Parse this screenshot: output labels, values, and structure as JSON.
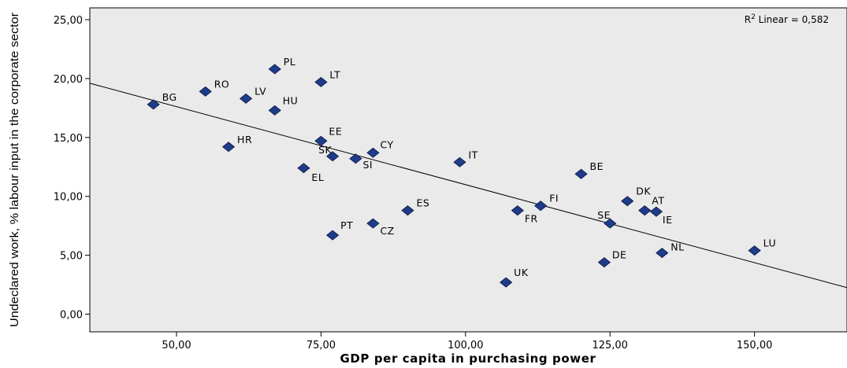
{
  "chart_data": {
    "type": "scatter",
    "xlabel": "GDP per capita in purchasing power",
    "ylabel": "Undeclared work, % labour input in the corporate sector",
    "xlim": [
      35,
      166
    ],
    "ylim": [
      -1.5,
      26
    ],
    "x_ticks": [
      50,
      75,
      100,
      125,
      150
    ],
    "x_tick_labels": [
      "50,00",
      "75,00",
      "100,00",
      "125,00",
      "150,00"
    ],
    "y_ticks": [
      0,
      5,
      10,
      15,
      20,
      25
    ],
    "y_tick_labels": [
      "0,00",
      "5,00",
      "10,00",
      "15,00",
      "20,00",
      "25,00"
    ],
    "grid": false,
    "background": "#eaeaea",
    "marker_color": "#1f3c8a",
    "annotation": {
      "base": "R",
      "sup": "2",
      "text": " Linear = 0,582"
    },
    "fit_line": {
      "x": [
        35,
        166
      ],
      "y": [
        19.6,
        2.25
      ]
    },
    "points": [
      {
        "label": "BG",
        "x": 46,
        "y": 17.8
      },
      {
        "label": "RO",
        "x": 55,
        "y": 18.9
      },
      {
        "label": "PL",
        "x": 67,
        "y": 20.8
      },
      {
        "label": "LV",
        "x": 62,
        "y": 18.3
      },
      {
        "label": "LT",
        "x": 75,
        "y": 19.7
      },
      {
        "label": "HU",
        "x": 67,
        "y": 17.3
      },
      {
        "label": "HR",
        "x": 59,
        "y": 14.2
      },
      {
        "label": "EE",
        "x": 75,
        "y": 14.7
      },
      {
        "label": "SK",
        "x": 77,
        "y": 13.4
      },
      {
        "label": "SI",
        "x": 81,
        "y": 13.2
      },
      {
        "label": "CY",
        "x": 84,
        "y": 13.7
      },
      {
        "label": "EL",
        "x": 72,
        "y": 12.4
      },
      {
        "label": "IT",
        "x": 99,
        "y": 12.9
      },
      {
        "label": "BE",
        "x": 120,
        "y": 11.9
      },
      {
        "label": "ES",
        "x": 90,
        "y": 8.8
      },
      {
        "label": "CZ",
        "x": 84,
        "y": 7.7
      },
      {
        "label": "PT",
        "x": 77,
        "y": 6.7
      },
      {
        "label": "FI",
        "x": 113,
        "y": 9.2
      },
      {
        "label": "FR",
        "x": 109,
        "y": 8.8
      },
      {
        "label": "DK",
        "x": 128,
        "y": 9.6
      },
      {
        "label": "AT",
        "x": 131,
        "y": 8.8
      },
      {
        "label": "IE",
        "x": 133,
        "y": 8.7
      },
      {
        "label": "SE",
        "x": 125,
        "y": 7.7
      },
      {
        "label": "NL",
        "x": 134,
        "y": 5.2
      },
      {
        "label": "DE",
        "x": 124,
        "y": 4.4
      },
      {
        "label": "LU",
        "x": 150,
        "y": 5.4
      },
      {
        "label": "UK",
        "x": 107,
        "y": 2.7
      }
    ]
  }
}
